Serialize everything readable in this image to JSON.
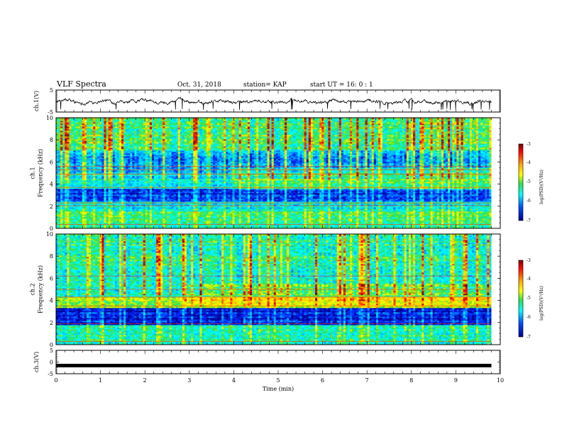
{
  "header": {
    "title": "VLF Spectra",
    "date": "Oct. 31, 2018",
    "station": "station= KAP",
    "start": "start  UT =   16: 0  : 1"
  },
  "colorbar": {
    "label": "log(PSD)(V²/Hz)",
    "ticks": [
      "-3",
      "-4",
      "-5",
      "-6",
      "-7"
    ],
    "colors": [
      "#7a0000",
      "#ff0000",
      "#ffb000",
      "#ffff00",
      "#30e050",
      "#00ffff",
      "#0050ff",
      "#000090"
    ]
  },
  "chart_data": [
    {
      "type": "line",
      "name": "ch1-waveform",
      "ylabel": "ch.1(V)",
      "xlim": [
        0,
        9.8
      ],
      "ylim": [
        -5,
        5
      ],
      "y_ticks": [
        "5",
        "-5"
      ],
      "amplitude_range": [
        -3.5,
        2.5
      ],
      "color": "#000000"
    },
    {
      "type": "heatmap",
      "name": "ch1-spectrogram",
      "ylabel": "ch.1\nFrequency (kHz)",
      "xlim": [
        0,
        9.8
      ],
      "ylim": [
        0,
        10
      ],
      "y_ticks": [
        "0",
        "2",
        "4",
        "6",
        "8",
        "10"
      ],
      "zlim": [
        -7,
        -3
      ],
      "bands": [
        {
          "f_khz": [
            0,
            0.5
          ],
          "level": -5.2
        },
        {
          "f_khz": [
            0.5,
            1.5
          ],
          "level": -5.0
        },
        {
          "f_khz": [
            1.5,
            2.5
          ],
          "level": -5.6
        },
        {
          "f_khz": [
            2.5,
            3.6
          ],
          "level": -6.5
        },
        {
          "f_khz": [
            3.6,
            5.0
          ],
          "level": -5.5
        },
        {
          "f_khz": [
            5.0,
            7.0
          ],
          "level": -5.9
        },
        {
          "f_khz": [
            7.0,
            10.0
          ],
          "level": -5.0
        }
      ],
      "lines_khz": [
        0.35,
        2.05,
        2.3,
        3.7,
        4.9,
        5.3,
        5.6
      ]
    },
    {
      "type": "heatmap",
      "name": "ch2-spectrogram",
      "ylabel": "ch.2\nFrequency (kHz)",
      "xlim": [
        0,
        9.8
      ],
      "ylim": [
        0,
        10
      ],
      "y_ticks": [
        "0",
        "2",
        "4",
        "6",
        "8",
        "10"
      ],
      "zlim": [
        -7,
        -3
      ],
      "bands": [
        {
          "f_khz": [
            0,
            0.5
          ],
          "level": -5.3
        },
        {
          "f_khz": [
            0.5,
            1.8
          ],
          "level": -5.4
        },
        {
          "f_khz": [
            1.8,
            3.3
          ],
          "level": -6.6
        },
        {
          "f_khz": [
            3.3,
            4.4
          ],
          "level": -4.8
        },
        {
          "f_khz": [
            4.4,
            7.0
          ],
          "level": -5.3
        },
        {
          "f_khz": [
            7.0,
            10.0
          ],
          "level": -5.1
        }
      ],
      "lines_khz": [
        0.3,
        1.9,
        3.5,
        4.3,
        5.0,
        6.2
      ]
    },
    {
      "type": "line",
      "name": "ch3-waveform",
      "ylabel": "ch.3(V)",
      "xlim": [
        0,
        9.8
      ],
      "ylim": [
        -5,
        5
      ],
      "y_ticks": [
        "5",
        "0",
        "-5"
      ],
      "values_constant": -1.5,
      "color": "#000000"
    }
  ],
  "xaxis": {
    "label": "Time (min)",
    "ticks": [
      "0",
      "1",
      "2",
      "3",
      "4",
      "5",
      "6",
      "7",
      "8",
      "9",
      "10"
    ],
    "xlim": [
      0,
      10
    ]
  }
}
